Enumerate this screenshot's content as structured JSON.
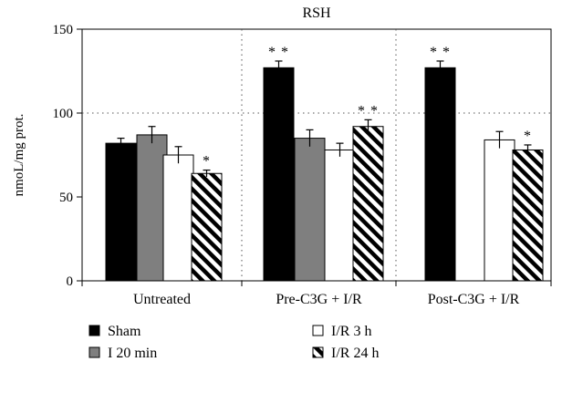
{
  "chart_data": {
    "type": "bar",
    "title": "RSH",
    "ylabel": "nmoL/mg prot.",
    "xlabel": "",
    "ylim": [
      0,
      150
    ],
    "yticks": [
      0,
      50,
      100,
      150
    ],
    "grid": "dotted, at 100 and between groups",
    "legend_position": "bottom",
    "categories": [
      "Untreated",
      "Pre-C3G + I/R",
      "Post-C3G + I/R"
    ],
    "series": [
      {
        "name": "Sham",
        "pattern": "solid-black",
        "values": [
          82,
          127,
          127
        ],
        "errors": [
          3,
          4,
          4
        ],
        "annotations": [
          "",
          "**",
          "**"
        ]
      },
      {
        "name": "I 20 min",
        "pattern": "solid-gray",
        "values": [
          87,
          85,
          0
        ],
        "errors": [
          5,
          5,
          0
        ],
        "annotations": [
          "",
          "",
          ""
        ]
      },
      {
        "name": "I/R 3 h",
        "pattern": "white",
        "values": [
          75,
          78,
          84
        ],
        "errors": [
          5,
          4,
          5
        ],
        "annotations": [
          "",
          "",
          ""
        ]
      },
      {
        "name": "I/R 24 h",
        "pattern": "diagonal-hatch",
        "values": [
          64,
          92,
          78
        ],
        "errors": [
          2,
          4,
          3
        ],
        "annotations": [
          "*",
          "**",
          "*"
        ]
      }
    ],
    "colors": {
      "sham": "#000000",
      "i20": "#7f7f7f",
      "ir3": "#ffffff",
      "ir24_stripe": "#000000",
      "ir24_bg": "#ffffff"
    }
  }
}
